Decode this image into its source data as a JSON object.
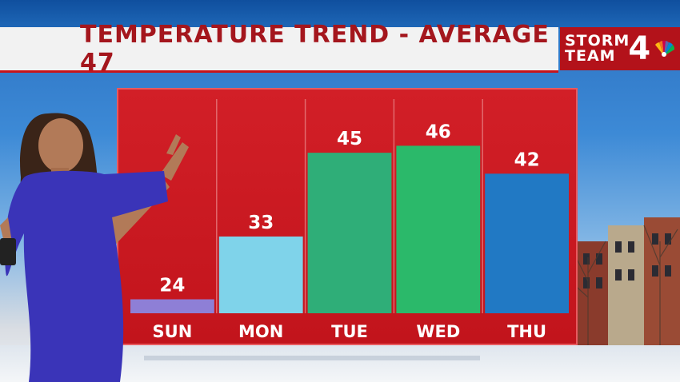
{
  "header": {
    "title": "TEMPERATURE TREND - AVERAGE 47"
  },
  "logo": {
    "line1": "STORM",
    "line2": "TEAM",
    "number": "4",
    "icon": "peacock-icon"
  },
  "colors": {
    "panel": "#c8161e",
    "title_text": "#a4161d",
    "bar_sun": "#8e7fd6",
    "bar_mon": "#7fd3ea",
    "bar_tue": "#2fae78",
    "bar_wed": "#2bb96a",
    "bar_thu": "#2179c4"
  },
  "chart_data": {
    "type": "bar",
    "title": "TEMPERATURE TREND - AVERAGE 47",
    "categories": [
      "SUN",
      "MON",
      "TUE",
      "WED",
      "THU"
    ],
    "values": [
      24,
      33,
      45,
      46,
      42
    ],
    "ylim": [
      22,
      52
    ],
    "grid": false,
    "xlabel": "",
    "ylabel": ""
  }
}
